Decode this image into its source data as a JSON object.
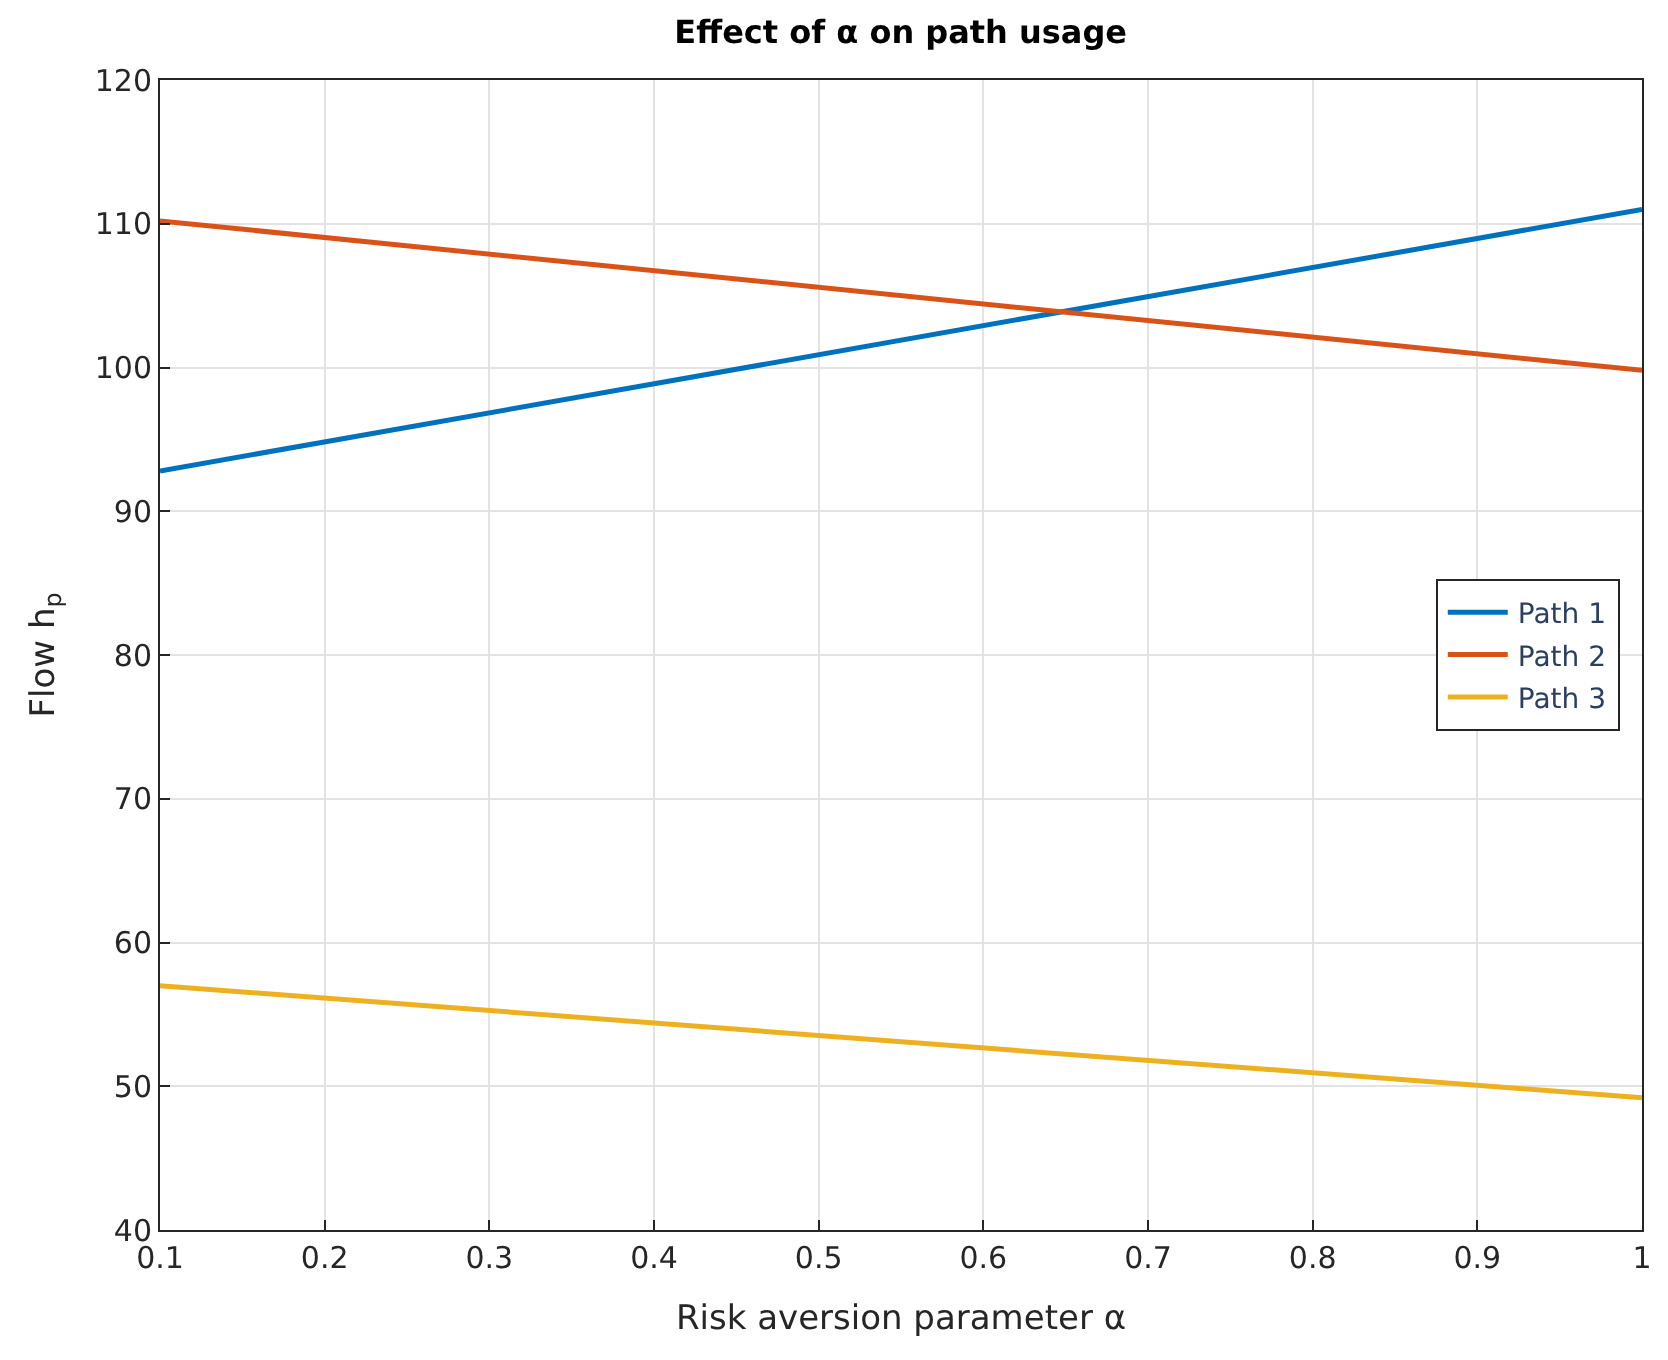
{
  "chart_data": {
    "type": "line",
    "title": "Effect of α on path usage",
    "xlabel": "Risk aversion parameter α",
    "ylabel": "Flow h$_{p}$",
    "x": [
      0.1,
      1
    ],
    "series": [
      {
        "name": "Path 1",
        "color": "#0072bd",
        "values": [
          92.8,
          111
        ]
      },
      {
        "name": "Path 2",
        "color": "#d95319",
        "values": [
          110.2,
          99.8
        ]
      },
      {
        "name": "Path 3",
        "color": "#edb120",
        "values": [
          57,
          49.2
        ]
      }
    ],
    "xlim": [
      0.1,
      1
    ],
    "xticks": [
      0.1,
      0.2,
      0.3,
      0.4,
      0.5,
      0.6,
      0.7,
      0.8,
      0.9,
      1
    ],
    "ylim": [
      40,
      120
    ],
    "yticks": [
      40,
      50,
      60,
      70,
      80,
      90,
      100,
      110,
      120
    ],
    "grid": true,
    "legend": "right",
    "marker": "none",
    "line_style": "solid"
  }
}
